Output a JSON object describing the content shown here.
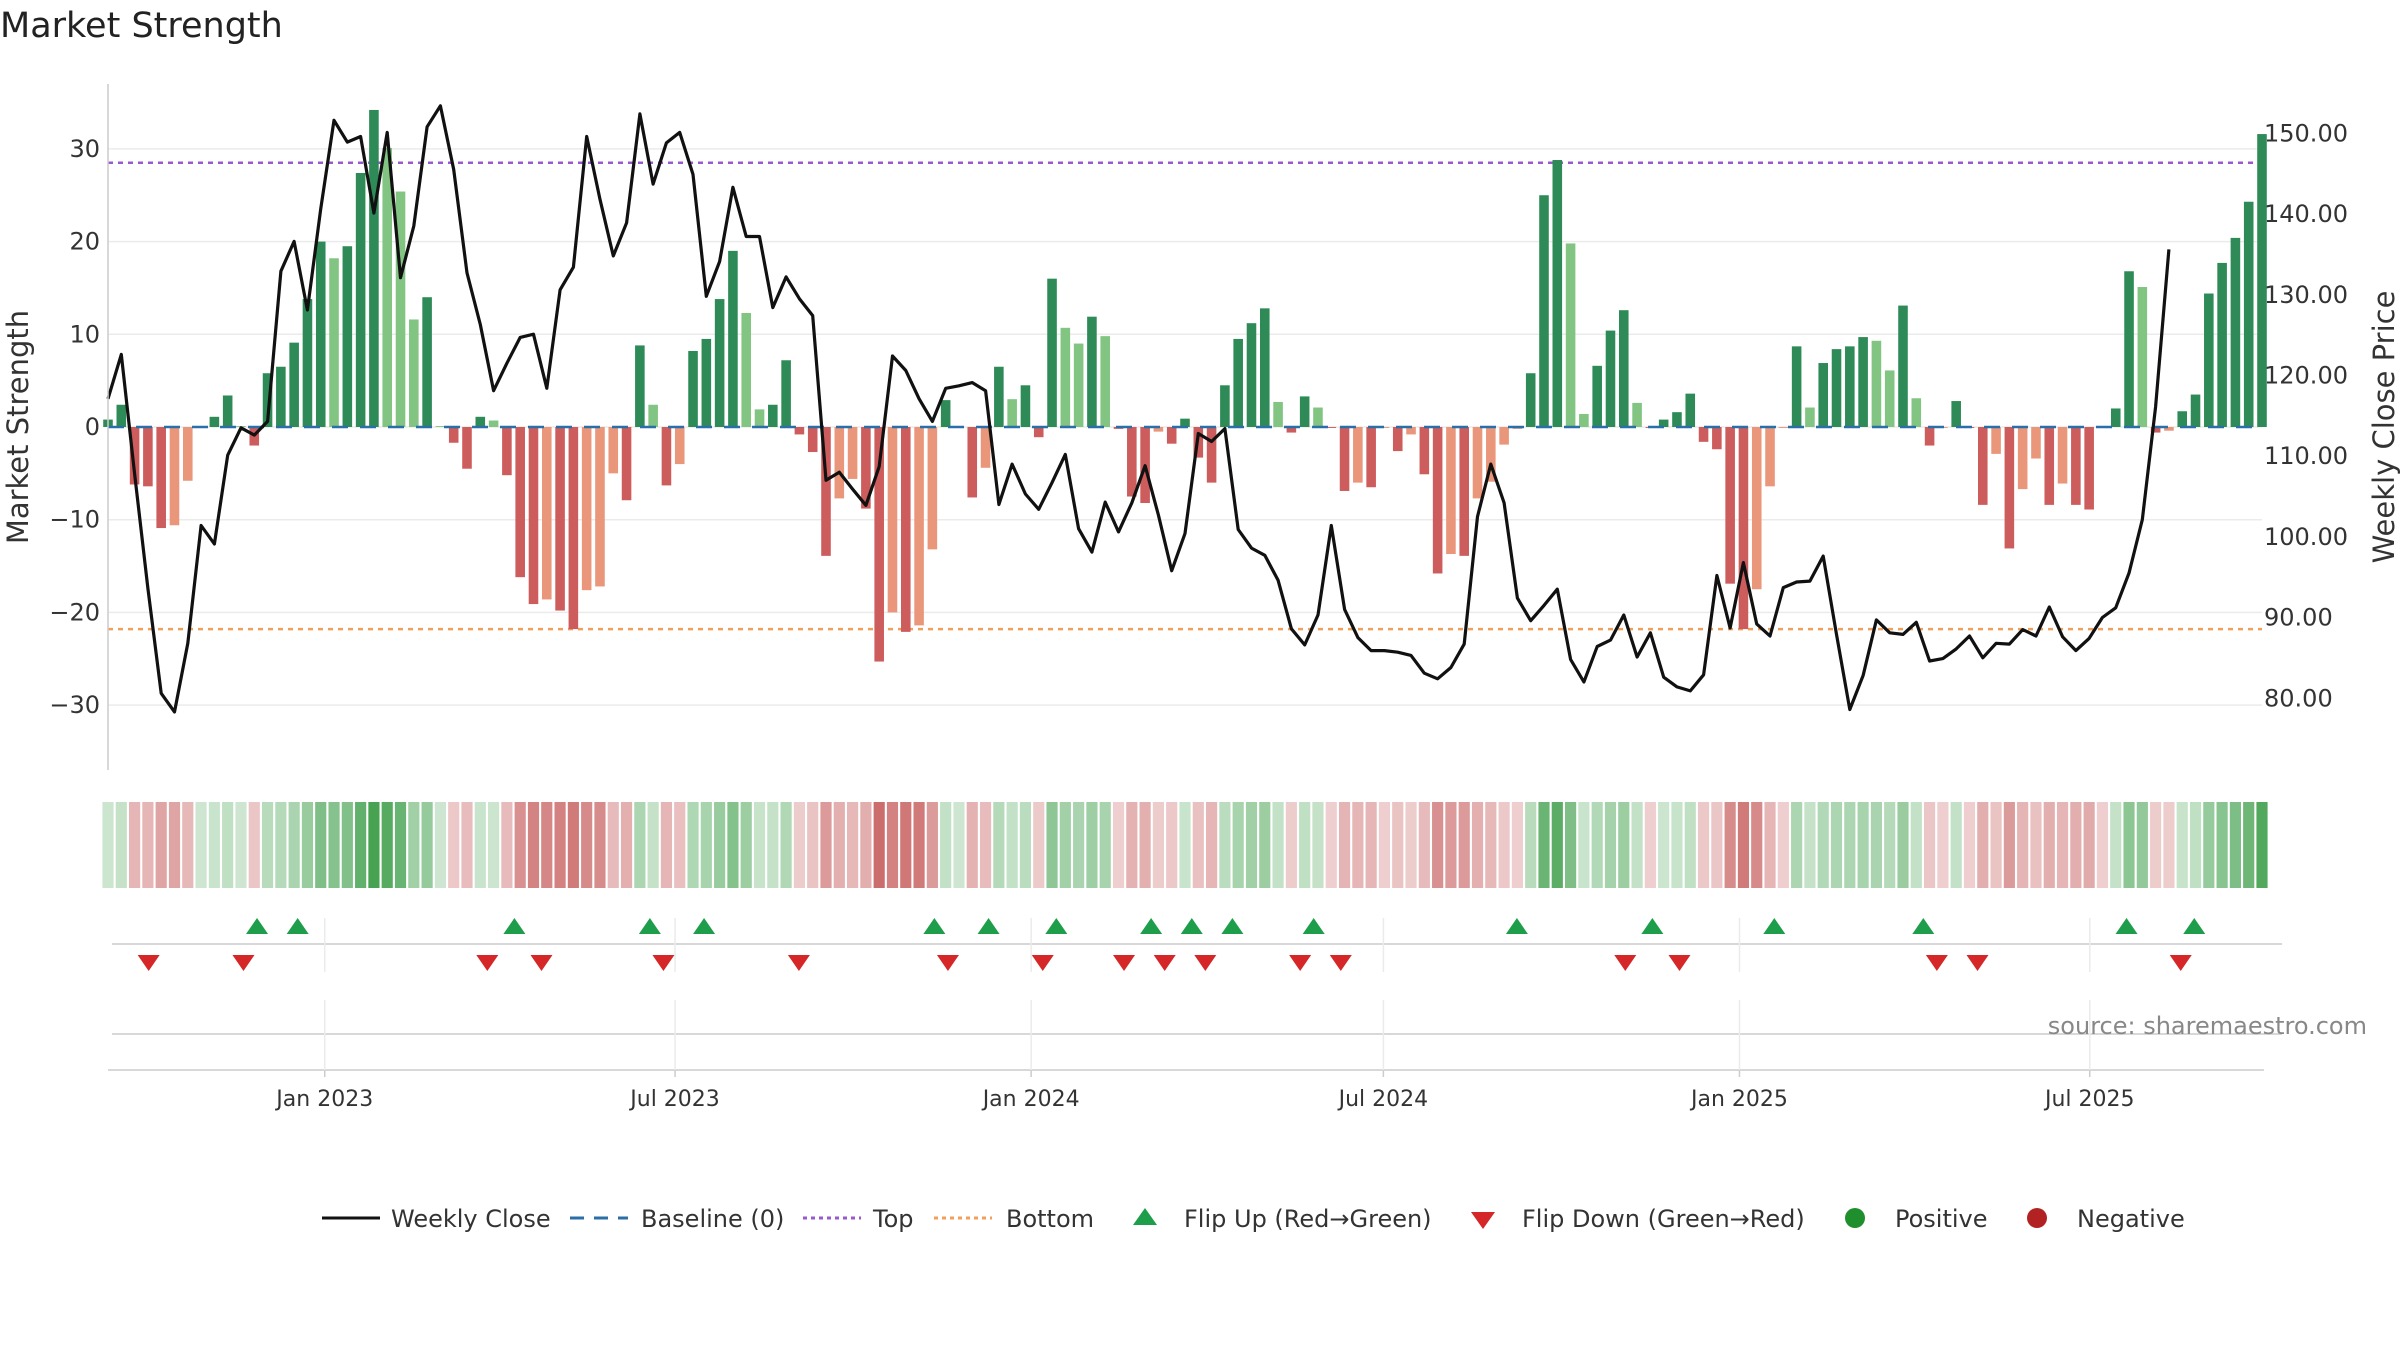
{
  "chart_data": {
    "type": "bar",
    "title": "Market Strength",
    "ylabel_left": "Market Strength",
    "ylabel_right": "Weekly Close Price",
    "source_note": "source: sharemaestro.com",
    "y_left_range": [
      -37,
      37
    ],
    "y_left_ticks": [
      30,
      20,
      10,
      0,
      -10,
      -20,
      -30
    ],
    "y_left_tick_labels": [
      "30",
      "20",
      "10",
      "0",
      "−10",
      "−20",
      "−30"
    ],
    "y_right_range": [
      71,
      156
    ],
    "y_right_ticks": [
      150,
      140,
      130,
      120,
      110,
      100,
      90,
      80
    ],
    "y_right_tick_labels": [
      "150.00",
      "140.00",
      "130.00",
      "120.00",
      "110.00",
      "100.00",
      "90.00",
      "80.00"
    ],
    "x_date_range": [
      "2022-09-11",
      "2025-09-28"
    ],
    "x_tick_dates": [
      "2023-01-01",
      "2023-07-01",
      "2024-01-01",
      "2024-07-01",
      "2025-01-01",
      "2025-07-01"
    ],
    "x_tick_labels": [
      "Jan 2023",
      "Jul 2023",
      "Jan 2024",
      "Jul 2024",
      "Jan 2025",
      "Jul 2025"
    ],
    "top_line": 28.5,
    "bottom_line": -21.8,
    "market_strength": [
      0.8,
      2.4,
      -6.2,
      -6.4,
      -10.9,
      -10.6,
      -5.8,
      0.1,
      1.1,
      3.4,
      0.1,
      -2.0,
      5.8,
      6.5,
      9.1,
      13.8,
      20.0,
      18.2,
      19.5,
      27.4,
      34.2,
      30.1,
      25.4,
      11.6,
      14.0,
      0.1,
      -1.7,
      -4.5,
      1.1,
      0.7,
      -5.2,
      -16.2,
      -19.1,
      -18.6,
      -19.8,
      -21.8,
      -17.6,
      -17.2,
      -5.0,
      -7.9,
      8.8,
      2.4,
      -6.3,
      -4.0,
      8.2,
      9.5,
      13.8,
      19.0,
      12.3,
      1.9,
      2.4,
      7.2,
      -0.8,
      -2.7,
      -13.9,
      -7.7,
      -5.6,
      -8.8,
      -25.3,
      -20.0,
      -22.1,
      -21.4,
      -13.2,
      2.9,
      0.1,
      -7.6,
      -4.4,
      6.5,
      3.0,
      4.5,
      -1.1,
      16.0,
      10.7,
      9.0,
      11.9,
      9.8,
      -0.2,
      -7.5,
      -8.2,
      -0.5,
      -1.8,
      0.9,
      -3.3,
      -6.0,
      4.5,
      9.5,
      11.2,
      12.8,
      2.7,
      -0.6,
      3.3,
      2.1,
      -0.1,
      -6.9,
      -6.0,
      -6.5,
      -0.1,
      -2.6,
      -0.8,
      -5.1,
      -15.8,
      -13.7,
      -13.9,
      -7.7,
      -5.9,
      -1.9,
      -0.2,
      5.8,
      25.0,
      28.8,
      19.8,
      1.4,
      6.6,
      10.4,
      12.6,
      2.6,
      -0.1,
      0.8,
      1.6,
      3.6,
      -1.6,
      -2.4,
      -16.9,
      -21.8,
      -17.5,
      -6.4,
      -0.1,
      8.7,
      2.1,
      6.9,
      8.4,
      8.7,
      9.7,
      9.3,
      6.1,
      13.1,
      3.1,
      -2.0,
      -0.1,
      2.8,
      -0.1,
      -8.4,
      -2.9,
      -13.1,
      -6.7,
      -3.4,
      -8.4,
      -6.1,
      -8.4,
      -8.9,
      -0.1,
      2.0,
      16.8,
      15.1,
      -0.6,
      -0.4,
      1.7,
      3.5,
      14.4,
      17.7,
      20.4,
      24.3,
      31.6
    ],
    "weekly_close": [
      117.0,
      122.5,
      107.7,
      93.5,
      80.5,
      78.2,
      86.7,
      101.3,
      99.0,
      110.0,
      113.4,
      112.5,
      114.2,
      132.8,
      136.5,
      128.0,
      140.5,
      151.5,
      148.8,
      149.5,
      140.0,
      150.0,
      132.0,
      138.4,
      150.7,
      153.3,
      145.4,
      132.6,
      126.2,
      118.0,
      121.4,
      124.6,
      125.0,
      118.3,
      130.5,
      133.3,
      149.5,
      141.7,
      134.7,
      138.8,
      152.3,
      143.6,
      148.7,
      150.0,
      144.8,
      129.7,
      134.0,
      143.2,
      137.1,
      137.1,
      128.3,
      132.1,
      129.4,
      127.3,
      106.9,
      107.9,
      105.8,
      103.8,
      108.6,
      122.3,
      120.5,
      117.0,
      114.2,
      118.3,
      118.6,
      119.0,
      118.0,
      103.9,
      108.9,
      105.2,
      103.3,
      106.6,
      110.1,
      100.9,
      98.0,
      104.2,
      100.5,
      104.1,
      108.7,
      102.6,
      95.7,
      100.3,
      112.7,
      111.7,
      113.3,
      100.8,
      98.5,
      97.6,
      94.5,
      88.5,
      86.5,
      90.2,
      101.3,
      90.9,
      87.4,
      85.8,
      85.8,
      85.6,
      85.2,
      83.0,
      82.3,
      83.7,
      86.6,
      102.4,
      108.9,
      104.1,
      92.3,
      89.5,
      91.4,
      93.4,
      84.7,
      81.9,
      86.3,
      87.1,
      90.2,
      85.0,
      88.0,
      82.5,
      81.3,
      80.8,
      82.8,
      95.1,
      88.6,
      96.7,
      89.1,
      87.6,
      93.6,
      94.3,
      94.4,
      97.5,
      87.8,
      78.5,
      82.7,
      89.6,
      88.0,
      87.8,
      89.3,
      84.5,
      84.8,
      86.0,
      87.6,
      84.9,
      86.7,
      86.6,
      88.4,
      87.6,
      91.2,
      87.5,
      85.8,
      87.3,
      89.9,
      91.1,
      95.4,
      102.0,
      116.0,
      135.5
    ],
    "flip_up_dates": [
      "2022-11-27",
      "2022-12-18",
      "2023-04-09",
      "2023-06-18",
      "2023-07-16",
      "2023-11-12",
      "2023-12-10",
      "2024-01-14",
      "2024-03-03",
      "2024-03-24",
      "2024-04-14",
      "2024-05-26",
      "2024-09-08",
      "2024-11-17",
      "2025-01-19",
      "2025-04-06",
      "2025-07-20",
      "2025-08-24"
    ],
    "flip_down_dates": [
      "2022-10-02",
      "2022-11-20",
      "2023-03-26",
      "2023-04-23",
      "2023-06-25",
      "2023-09-03",
      "2023-11-19",
      "2024-01-07",
      "2024-02-18",
      "2024-03-10",
      "2024-03-31",
      "2024-05-19",
      "2024-06-09",
      "2024-11-03",
      "2024-12-01",
      "2025-04-13",
      "2025-05-04",
      "2025-08-17"
    ],
    "legend": {
      "weekly_close": "Weekly Close",
      "baseline": "Baseline (0)",
      "top": "Top",
      "bottom": "Bottom",
      "flip_up": "Flip Up (Red→Green)",
      "flip_down": "Flip Down (Green→Red)",
      "positive": "Positive",
      "negative": "Negative"
    },
    "colors": {
      "price_line": "#111111",
      "baseline": "#2b6fa8",
      "top": "#9b59d0",
      "bottom": "#f0a05a",
      "up_marker": "#1e9e4a",
      "down_marker": "#d62728",
      "positive_dot": "#1e8f2c",
      "negative_dot": "#b22222",
      "bar_strong_up": "#2e8b57",
      "bar_weak_up": "#82c482",
      "bar_strong_down": "#cd5c5c",
      "bar_weak_down": "#e9967a",
      "grid": "#ebebeb",
      "axis": "#cccccc",
      "text": "#333333"
    }
  }
}
